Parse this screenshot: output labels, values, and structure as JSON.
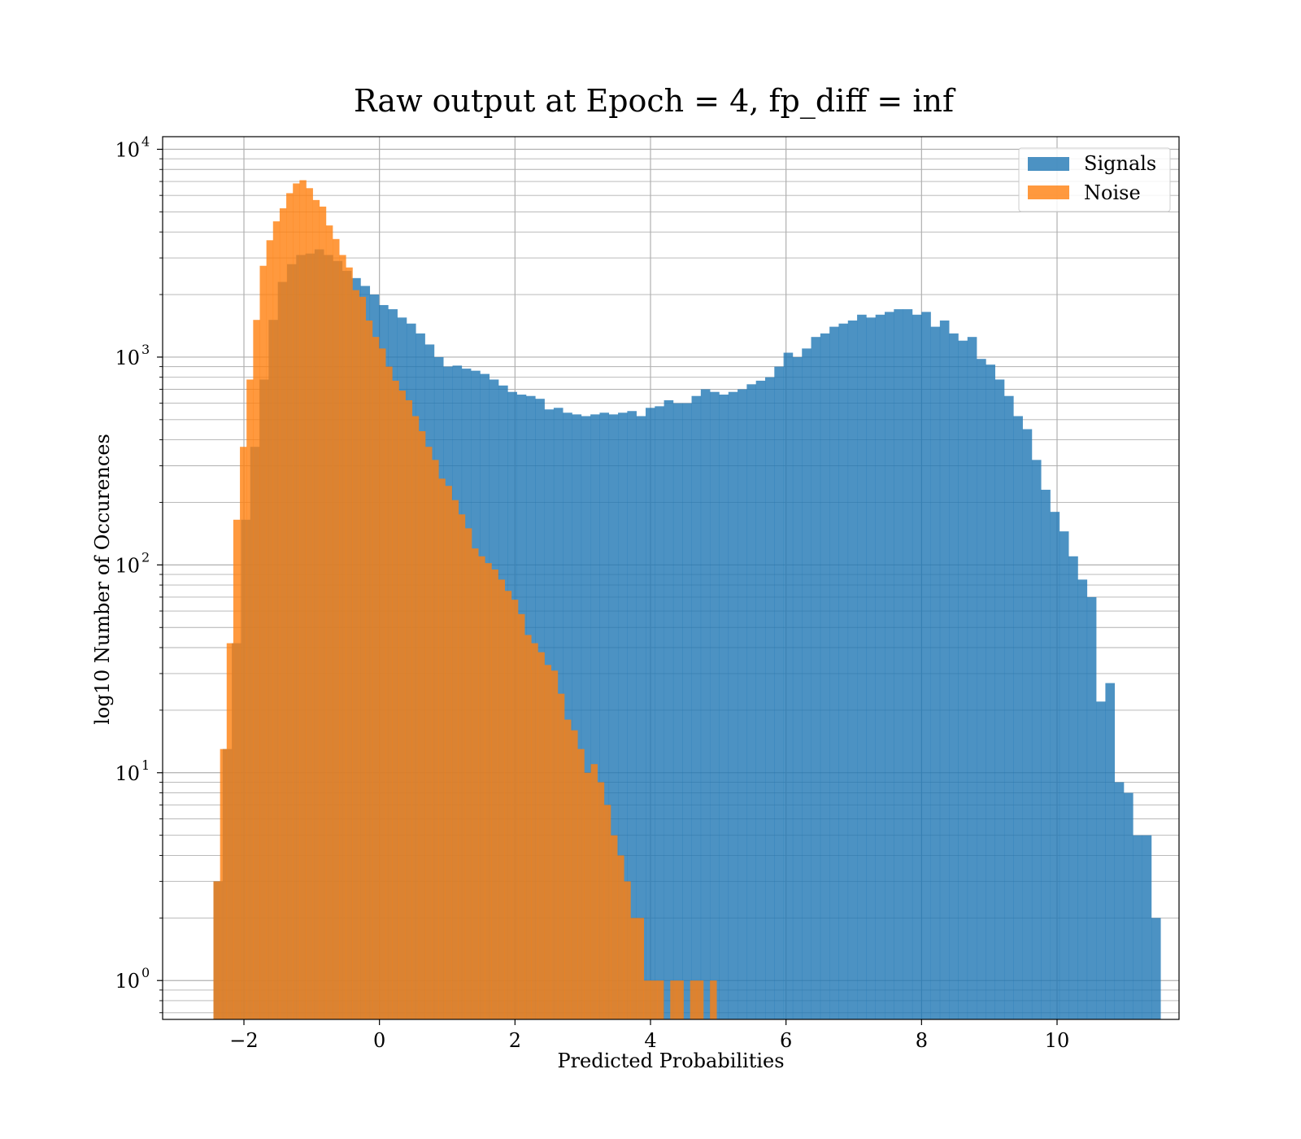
{
  "chart_data": {
    "type": "histogram",
    "title": "Raw output at Epoch = 4, fp_diff = inf",
    "xlabel": "Predicted Probabilities",
    "ylabel": "log10 Number of Occurences",
    "xlim": [
      -3.2,
      11.8
    ],
    "ylim": [
      0.65,
      11500
    ],
    "yscale": "log",
    "grid": true,
    "legend_position": "top-right",
    "x_ticks": [
      -2,
      0,
      2,
      4,
      6,
      8,
      10
    ],
    "x_tick_labels": [
      "−2",
      "0",
      "2",
      "4",
      "6",
      "8",
      "10"
    ],
    "y_ticks": [
      {
        "value": 1,
        "base": "10",
        "exp": "0"
      },
      {
        "value": 10,
        "base": "10",
        "exp": "1"
      },
      {
        "value": 100,
        "base": "10",
        "exp": "2"
      },
      {
        "value": 1000,
        "base": "10",
        "exp": "3"
      },
      {
        "value": 10000,
        "base": "10",
        "exp": "4"
      }
    ],
    "series": [
      {
        "name": "Signals",
        "color": "#1f77b4",
        "opacity": 0.8,
        "x_start": -2.45,
        "bin_width": 0.1357,
        "counts": [
          3,
          13,
          42,
          165,
          370,
          780,
          1510,
          2300,
          2800,
          3100,
          3150,
          3300,
          3100,
          2900,
          2600,
          2400,
          2200,
          2000,
          1780,
          1700,
          1550,
          1450,
          1300,
          1150,
          1000,
          900,
          910,
          880,
          860,
          830,
          780,
          730,
          680,
          660,
          650,
          630,
          560,
          570,
          540,
          530,
          520,
          530,
          540,
          530,
          540,
          550,
          520,
          570,
          580,
          620,
          600,
          600,
          650,
          700,
          680,
          660,
          680,
          700,
          740,
          770,
          800,
          900,
          1050,
          1000,
          1100,
          1250,
          1300,
          1400,
          1450,
          1500,
          1600,
          1550,
          1600,
          1650,
          1700,
          1700,
          1600,
          1650,
          1400,
          1500,
          1300,
          1200,
          1250,
          980,
          920,
          780,
          650,
          520,
          450,
          320,
          230,
          180,
          145,
          110,
          85,
          70,
          22,
          27,
          9,
          8,
          5,
          5,
          2
        ]
      },
      {
        "name": "Noise",
        "color": "#ff7f0e",
        "opacity": 0.8,
        "x_start": -2.45,
        "bin_width": 0.0977,
        "counts": [
          3,
          13,
          42,
          165,
          370,
          780,
          1510,
          2750,
          3650,
          4500,
          5200,
          6150,
          6850,
          7100,
          6500,
          5700,
          5300,
          4300,
          3700,
          3100,
          2700,
          2100,
          1950,
          1500,
          1250,
          1100,
          900,
          770,
          690,
          620,
          520,
          440,
          370,
          320,
          260,
          240,
          205,
          175,
          150,
          120,
          110,
          102,
          95,
          85,
          75,
          68,
          58,
          46,
          42,
          38,
          33,
          31,
          24,
          18,
          16,
          13,
          10,
          11,
          9,
          7,
          5,
          4,
          3,
          2,
          2,
          1,
          1,
          1,
          0,
          1,
          1,
          0,
          1,
          1,
          0,
          1
        ]
      }
    ]
  }
}
